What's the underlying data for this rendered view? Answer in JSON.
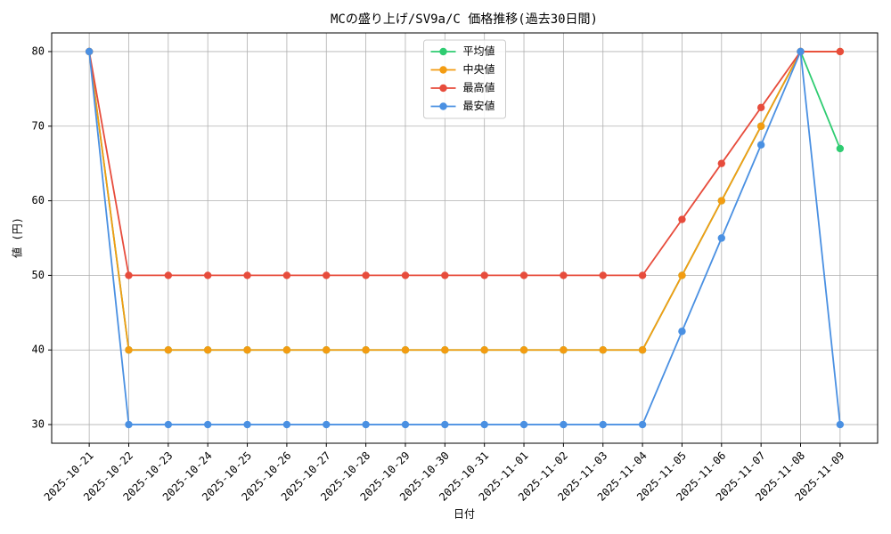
{
  "chart_data": {
    "type": "line",
    "title": "MCの盛り上げ/SV9a/C 価格推移(過去30日間)",
    "x_label": "日付",
    "y_label": "値 (円)",
    "categories": [
      "2025-10-21",
      "2025-10-22",
      "2025-10-23",
      "2025-10-24",
      "2025-10-25",
      "2025-10-26",
      "2025-10-27",
      "2025-10-28",
      "2025-10-29",
      "2025-10-30",
      "2025-10-31",
      "2025-11-01",
      "2025-11-02",
      "2025-11-03",
      "2025-11-04",
      "2025-11-05",
      "2025-11-06",
      "2025-11-07",
      "2025-11-08",
      "2025-11-09"
    ],
    "series": [
      {
        "name": "平均値",
        "color": "#2ecc71",
        "values": [
          80,
          40,
          40,
          40,
          40,
          40,
          40,
          40,
          40,
          40,
          40,
          40,
          40,
          40,
          40,
          50,
          60,
          70,
          80,
          67
        ]
      },
      {
        "name": "中央値",
        "color": "#f39c12",
        "values": [
          80,
          40,
          40,
          40,
          40,
          40,
          40,
          40,
          40,
          40,
          40,
          40,
          40,
          40,
          40,
          50,
          60,
          70,
          80,
          80
        ]
      },
      {
        "name": "最高値",
        "color": "#e74c3c",
        "values": [
          80,
          50,
          50,
          50,
          50,
          50,
          50,
          50,
          50,
          50,
          50,
          50,
          50,
          50,
          50,
          57.5,
          65,
          72.5,
          80,
          80
        ]
      },
      {
        "name": "最安値",
        "color": "#4a90e2",
        "values": [
          80,
          30,
          30,
          30,
          30,
          30,
          30,
          30,
          30,
          30,
          30,
          30,
          30,
          30,
          30,
          42.5,
          55,
          67.5,
          80,
          30
        ]
      }
    ],
    "ylim": [
      27.5,
      82.5
    ],
    "yticks": [
      30,
      40,
      50,
      60,
      70,
      80
    ],
    "grid": true,
    "legend": "upper center"
  }
}
